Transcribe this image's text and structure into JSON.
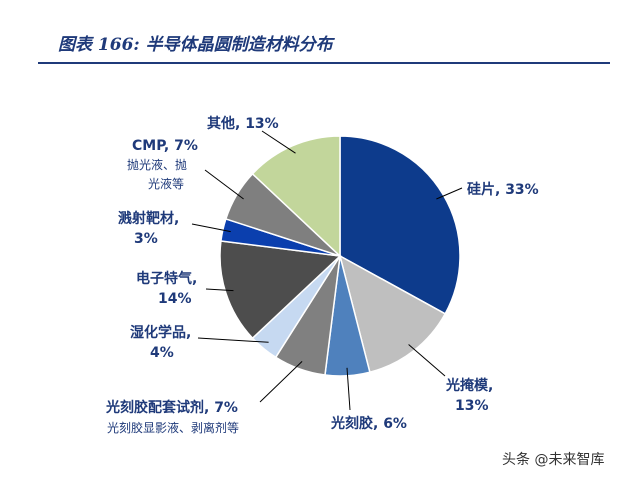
{
  "header": {
    "title": "图表 166:  半导体晶圆制造材料分布"
  },
  "chart_data": {
    "type": "pie",
    "title": "",
    "slices": [
      {
        "name": "硅片",
        "value": 33,
        "label": "硅片, 33%",
        "sub": "",
        "color": "#0d3b8c"
      },
      {
        "name": "光掩模",
        "value": 13,
        "label": "光掩模,",
        "label2": "13%",
        "sub": "",
        "color": "#bfbfbf"
      },
      {
        "name": "光刻胶",
        "value": 6,
        "label": "光刻胶, 6%",
        "sub": "",
        "color": "#4f81bd"
      },
      {
        "name": "光刻胶配套试剂",
        "value": 7,
        "label": "光刻胶配套试剂, 7%",
        "sub": "光刻胶显影液、剥离剂等",
        "color": "#808080"
      },
      {
        "name": "湿化学品",
        "value": 4,
        "label": "湿化学品,",
        "label2": "4%",
        "sub": "",
        "color": "#c6d9f1"
      },
      {
        "name": "电子特气",
        "value": 14,
        "label": "电子特气,",
        "label2": "14%",
        "sub": "",
        "color": "#4d4d4d"
      },
      {
        "name": "溅射靶材",
        "value": 3,
        "label": "溅射靶材,",
        "label2": "3%",
        "sub": "",
        "color": "#0b3fae"
      },
      {
        "name": "CMP",
        "value": 7,
        "label": "CMP, 7%",
        "sub": "抛光液、抛",
        "sub2": "光液等",
        "color": "#7f7f7f"
      },
      {
        "name": "其他",
        "value": 13,
        "label": "其他, 13%",
        "sub": "",
        "color": "#c2d69b"
      }
    ]
  },
  "watermark": {
    "text": "头条 @未来智库"
  }
}
